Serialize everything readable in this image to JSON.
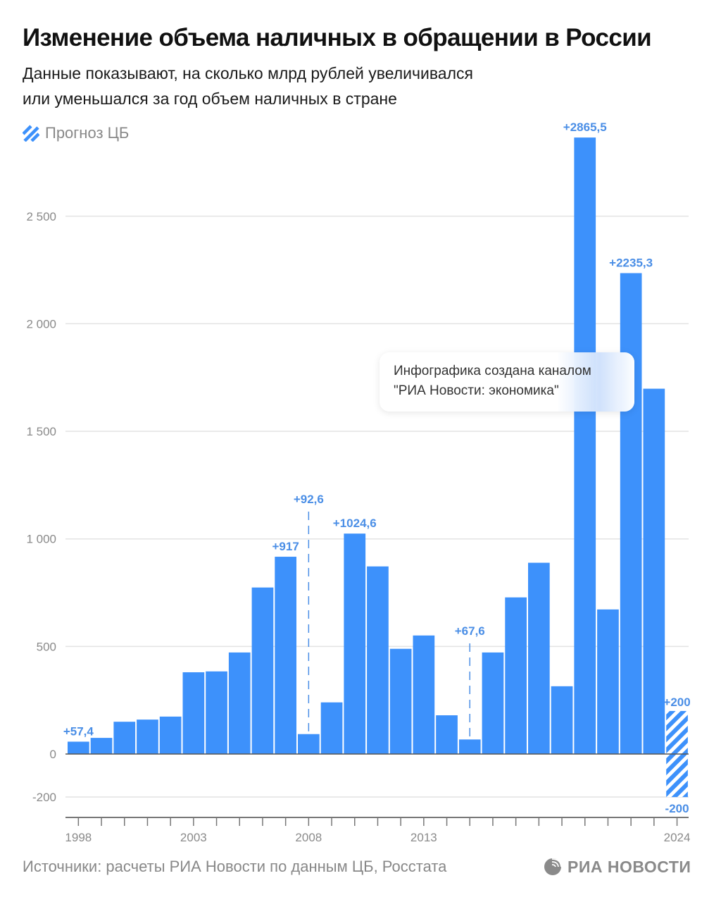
{
  "header": {
    "title": "Изменение объема наличных в обращении в России",
    "subtitle_line1": "Данные показывают, на сколько млрд рублей увеличивался",
    "subtitle_line2": "или уменьшался за год объем наличных в стране"
  },
  "legend": {
    "label": "Прогноз ЦБ",
    "icon": "hatched-swatch-icon"
  },
  "note": {
    "line1": "Инфографика создана каналом",
    "line2": "\"РИА Новости: экономика\""
  },
  "footer": {
    "source": "Источники: расчеты РИА Новости по данным ЦБ, Росстата",
    "logo_text": "РИА НОВОСТИ",
    "logo_icon": "ria-globe-icon"
  },
  "colors": {
    "bar": "#3d91fb",
    "label": "#4a8ee6",
    "grid": "#e3e3e3",
    "axis": "#555555"
  },
  "chart_data": {
    "type": "bar",
    "title": "Изменение объема наличных в обращении в России",
    "ylabel": "млрд рублей",
    "xlabel": "",
    "ylim": [
      -280,
      2900
    ],
    "grid": true,
    "legend_position": "top-left",
    "yticks": [
      {
        "value": -200,
        "label": "-200"
      },
      {
        "value": 0,
        "label": "0"
      },
      {
        "value": 500,
        "label": "500"
      },
      {
        "value": 1000,
        "label": "1 000"
      },
      {
        "value": 1500,
        "label": "1 500"
      },
      {
        "value": 2000,
        "label": "2 000"
      },
      {
        "value": 2500,
        "label": "2 500"
      }
    ],
    "xtick_labels": [
      {
        "year": 1998,
        "label": "1998"
      },
      {
        "year": 2003,
        "label": "2003"
      },
      {
        "year": 2008,
        "label": "2008"
      },
      {
        "year": 2013,
        "label": "2013"
      },
      {
        "year": 2024,
        "label": "2024"
      }
    ],
    "categories": [
      1998,
      1999,
      2000,
      2001,
      2002,
      2003,
      2004,
      2005,
      2006,
      2007,
      2008,
      2009,
      2010,
      2011,
      2012,
      2013,
      2014,
      2015,
      2016,
      2017,
      2018,
      2019,
      2020,
      2021,
      2022,
      2023
    ],
    "values": [
      57.4,
      75,
      150,
      160,
      174,
      380,
      384,
      472,
      774,
      917,
      92.6,
      240,
      1024.6,
      872,
      489,
      551,
      180,
      67.6,
      472,
      728,
      889,
      315,
      2865.5,
      672,
      2235.3,
      1698
    ],
    "data_labels": [
      {
        "year": 1998,
        "label": "+57,4"
      },
      {
        "year": 2007,
        "label": "+917"
      },
      {
        "year": 2008,
        "label": "+92,6",
        "dashed_leader": true
      },
      {
        "year": 2010,
        "label": "+1024,6"
      },
      {
        "year": 2015,
        "label": "+67,6",
        "dashed_leader": true
      },
      {
        "year": 2020,
        "label": "+2865,5"
      },
      {
        "year": 2022,
        "label": "+2235,3"
      }
    ],
    "forecast": {
      "year": 2024,
      "series_name": "Прогноз ЦБ",
      "low": -200,
      "high": 200,
      "low_label": "-200",
      "high_label": "+200"
    }
  }
}
